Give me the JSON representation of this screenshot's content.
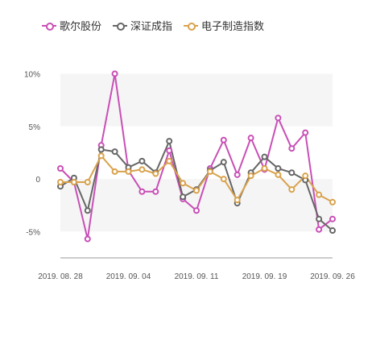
{
  "chart_data": {
    "type": "line",
    "title": "",
    "xlabel": "",
    "ylabel": "",
    "ylim": [
      -7.5,
      10
    ],
    "yticks": [
      10,
      5,
      0,
      -5
    ],
    "ytick_labels": [
      "10%",
      "5%",
      "0",
      "-5%"
    ],
    "xtick_labels": [
      "2019. 08. 28",
      "2019. 09. 04",
      "2019. 09. 11",
      "2019. 09. 19",
      "2019. 09. 26"
    ],
    "xtick_index": [
      0,
      5,
      10,
      15,
      20
    ],
    "legend_position": "top-left",
    "background": "alternating gray bands",
    "series": [
      {
        "name": "歌尔股份",
        "color": "#c84fb6",
        "values": [
          1.0,
          -0.3,
          -5.7,
          3.2,
          10.0,
          0.8,
          -1.2,
          -1.2,
          2.7,
          -1.9,
          -3.0,
          1.0,
          3.7,
          0.4,
          3.9,
          0.9,
          5.8,
          2.9,
          4.4,
          -4.8,
          -3.8
        ]
      },
      {
        "name": "深证成指",
        "color": "#666666",
        "values": [
          -0.7,
          0.1,
          -3.0,
          2.8,
          2.6,
          1.1,
          1.7,
          0.6,
          3.6,
          -1.7,
          -1.0,
          0.8,
          1.6,
          -2.3,
          0.6,
          2.1,
          1.0,
          0.6,
          -0.1,
          -3.8,
          -4.9
        ]
      },
      {
        "name": "电子制造指数",
        "color": "#d9a24c",
        "values": [
          -0.3,
          -0.3,
          -0.3,
          2.2,
          0.7,
          0.7,
          0.9,
          0.5,
          1.7,
          -0.4,
          -1.1,
          0.7,
          0.0,
          -2.0,
          0.3,
          1.0,
          0.4,
          -1.0,
          0.3,
          -1.5,
          -2.2
        ]
      }
    ]
  }
}
